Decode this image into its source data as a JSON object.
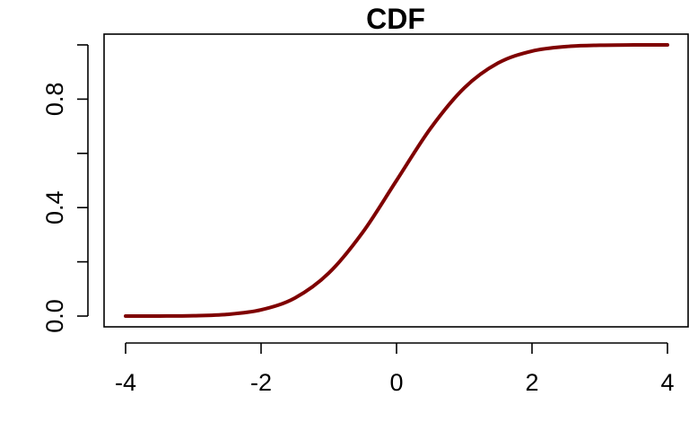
{
  "chart_data": {
    "type": "line",
    "title": "CDF",
    "xlabel": "",
    "ylabel": "",
    "xlim": [
      -4,
      4
    ],
    "ylim": [
      0,
      1
    ],
    "x_ticks": [
      -4,
      -2,
      0,
      2,
      4
    ],
    "x_tick_labels": [
      "-4",
      "-2",
      "0",
      "2",
      "4"
    ],
    "y_ticks": [
      0,
      0.2,
      0.4,
      0.6,
      0.8,
      1.0
    ],
    "y_tick_labels": [
      "0.0",
      "",
      "0.4",
      "",
      "0.8",
      ""
    ],
    "grid": false,
    "series": [
      {
        "color": "#7f0000",
        "x": [
          -4,
          -3.5,
          -3,
          -2.5,
          -2,
          -1.5,
          -1,
          -0.5,
          0,
          0.5,
          1,
          1.5,
          2,
          2.5,
          3,
          3.5,
          4
        ],
        "y": [
          3e-05,
          0.0002,
          0.0013,
          0.0062,
          0.0228,
          0.0668,
          0.1587,
          0.3085,
          0.5,
          0.6915,
          0.8413,
          0.9332,
          0.9772,
          0.9938,
          0.9987,
          0.9998,
          0.99997
        ]
      }
    ]
  }
}
